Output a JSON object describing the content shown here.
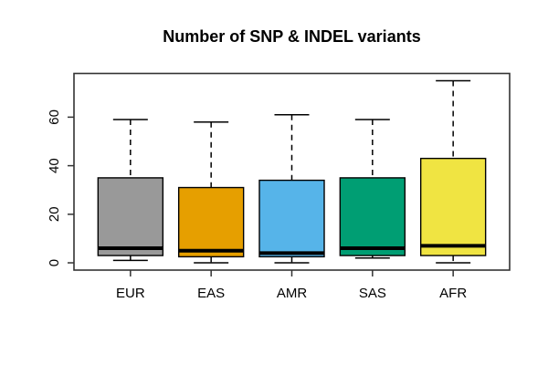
{
  "chart_data": {
    "type": "boxplot",
    "title": "Number of SNP & INDEL variants",
    "xlabel": "",
    "ylabel": "",
    "categories": [
      "EUR",
      "EAS",
      "AMR",
      "SAS",
      "AFR"
    ],
    "series": [
      {
        "name": "EUR",
        "min": 1,
        "q1": 3,
        "median": 6,
        "q3": 35,
        "max": 59,
        "color": "#999999"
      },
      {
        "name": "EAS",
        "min": 0,
        "q1": 2.5,
        "median": 5,
        "q3": 31,
        "max": 58,
        "color": "#E69F00"
      },
      {
        "name": "AMR",
        "min": 0,
        "q1": 2.5,
        "median": 4,
        "q3": 34,
        "max": 61,
        "color": "#56B4E9"
      },
      {
        "name": "SAS",
        "min": 2,
        "q1": 3,
        "median": 6,
        "q3": 35,
        "max": 59,
        "color": "#009E73"
      },
      {
        "name": "AFR",
        "min": 0,
        "q1": 3,
        "median": 7,
        "q3": 43,
        "max": 75,
        "color": "#F0E442"
      }
    ],
    "yticks": [
      0,
      20,
      40,
      60
    ],
    "ytick_labels": [
      "0",
      "20",
      "40",
      "60"
    ],
    "ylim": [
      -3,
      78
    ],
    "grid": false,
    "legend": "none",
    "frame_color": "#333333",
    "whisker_style": "dashed",
    "box_border_color": "#000000",
    "median_color": "#000000"
  }
}
